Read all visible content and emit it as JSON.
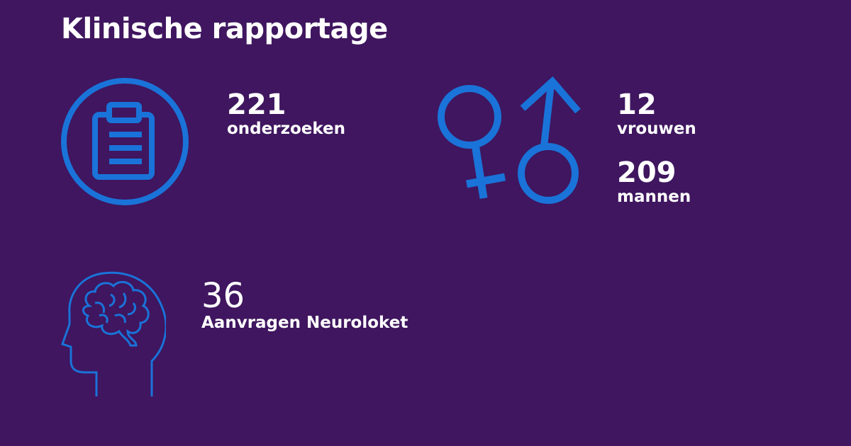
{
  "title": "Klinische rapportage",
  "accent_color": "#1a73d9",
  "background_color": "#3f165f",
  "stats": {
    "onderzoeken": {
      "value": "221",
      "label": "onderzoeken",
      "icon": "clipboard-icon"
    },
    "vrouwen": {
      "value": "12",
      "label": "vrouwen",
      "icon": "female-symbol-icon"
    },
    "mannen": {
      "value": "209",
      "label": "mannen",
      "icon": "male-symbol-icon"
    },
    "neuroloket": {
      "value": "36",
      "label": "Aanvragen Neuroloket",
      "icon": "head-brain-icon"
    }
  }
}
